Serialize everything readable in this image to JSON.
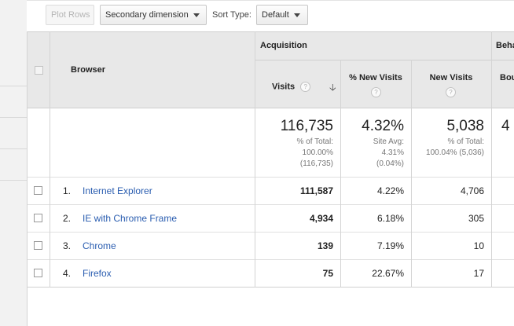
{
  "toolbar": {
    "plot_rows_label": "Plot Rows",
    "secondary_dimension_label": "Secondary dimension",
    "sort_type_label": "Sort Type:",
    "sort_type_value": "Default"
  },
  "table": {
    "dimension_header": "Browser",
    "groups": {
      "acquisition": "Acquisition",
      "behavior": "Beha"
    },
    "columns": {
      "visits": "Visits",
      "new_visits_pct": "% New Visits",
      "new_visits": "New Visits",
      "bounce": "Bou"
    },
    "summary": {
      "visits": {
        "value": "116,735",
        "line1": "% of Total:",
        "line2": "100.00%",
        "line3": "(116,735)"
      },
      "new_visits_pct": {
        "value": "4.32%",
        "line1": "Site Avg:",
        "line2": "4.31%",
        "line3": "(0.04%)"
      },
      "new_visits": {
        "value": "5,038",
        "line1": "% of Total:",
        "line2": "100.04% (5,036)"
      },
      "bounce_partial": "4"
    },
    "rows": [
      {
        "index": "1.",
        "browser": "Internet Explorer",
        "visits": "111,587",
        "new_visits_pct": "4.22%",
        "new_visits": "4,706"
      },
      {
        "index": "2.",
        "browser": "IE with Chrome Frame",
        "visits": "4,934",
        "new_visits_pct": "6.18%",
        "new_visits": "305"
      },
      {
        "index": "3.",
        "browser": "Chrome",
        "visits": "139",
        "new_visits_pct": "7.19%",
        "new_visits": "10"
      },
      {
        "index": "4.",
        "browser": "Firefox",
        "visits": "75",
        "new_visits_pct": "22.67%",
        "new_visits": "17"
      }
    ]
  },
  "icons": {
    "help": "?",
    "sort_arrow": "🡣"
  }
}
